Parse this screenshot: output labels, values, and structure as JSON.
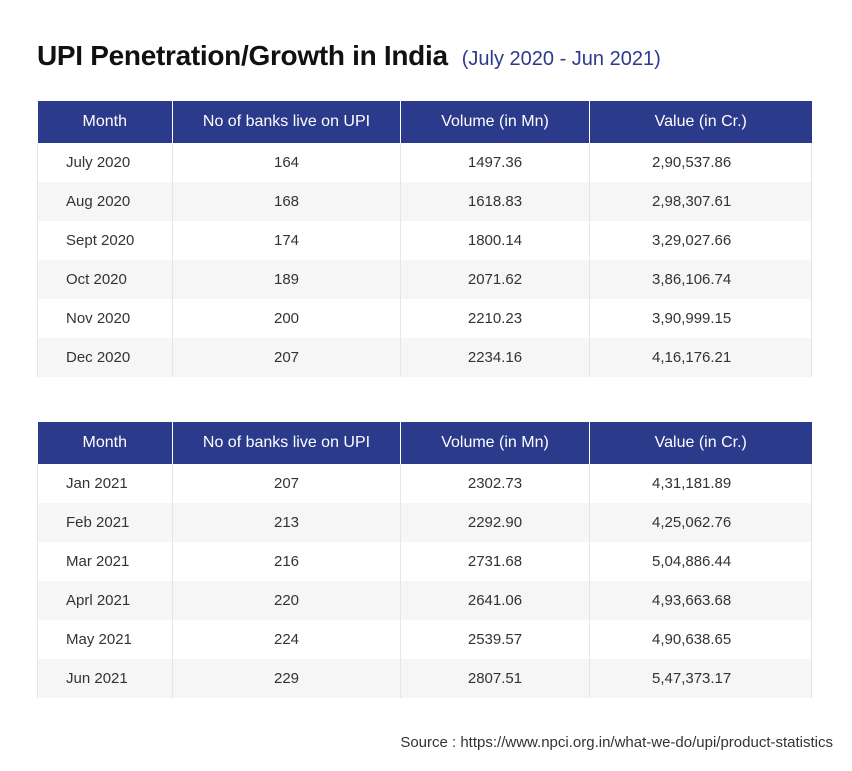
{
  "title": "UPI Penetration/Growth in India",
  "subtitle": "(July 2020 - Jun 2021)",
  "colors": {
    "header_bg": "#2b3a8a",
    "header_text": "#ffffff",
    "row_alt": "#f6f6f6"
  },
  "source": "Source : https://www.npci.org.in/what-we-do/upi/product-statistics",
  "chart_data": [
    {
      "type": "table",
      "columns": [
        "Month",
        "No of banks live on UPI",
        "Volume (in Mn)",
        "Value (in Cr.)"
      ],
      "rows": [
        [
          "July 2020",
          "164",
          "1497.36",
          "2,90,537.86"
        ],
        [
          "Aug 2020",
          "168",
          "1618.83",
          "2,98,307.61"
        ],
        [
          "Sept 2020",
          "174",
          "1800.14",
          "3,29,027.66"
        ],
        [
          "Oct 2020",
          "189",
          "2071.62",
          "3,86,106.74"
        ],
        [
          "Nov 2020",
          "200",
          "2210.23",
          "3,90,999.15"
        ],
        [
          "Dec 2020",
          "207",
          "2234.16",
          "4,16,176.21"
        ]
      ]
    },
    {
      "type": "table",
      "columns": [
        "Month",
        "No of banks live on UPI",
        "Volume (in Mn)",
        "Value (in Cr.)"
      ],
      "rows": [
        [
          "Jan 2021",
          "207",
          "2302.73",
          "4,31,181.89"
        ],
        [
          "Feb 2021",
          "213",
          "2292.90",
          "4,25,062.76"
        ],
        [
          "Mar 2021",
          "216",
          "2731.68",
          "5,04,886.44"
        ],
        [
          "Aprl 2021",
          "220",
          "2641.06",
          "4,93,663.68"
        ],
        [
          "May 2021",
          "224",
          "2539.57",
          "4,90,638.65"
        ],
        [
          "Jun 2021",
          "229",
          "2807.51",
          "5,47,373.17"
        ]
      ]
    }
  ]
}
